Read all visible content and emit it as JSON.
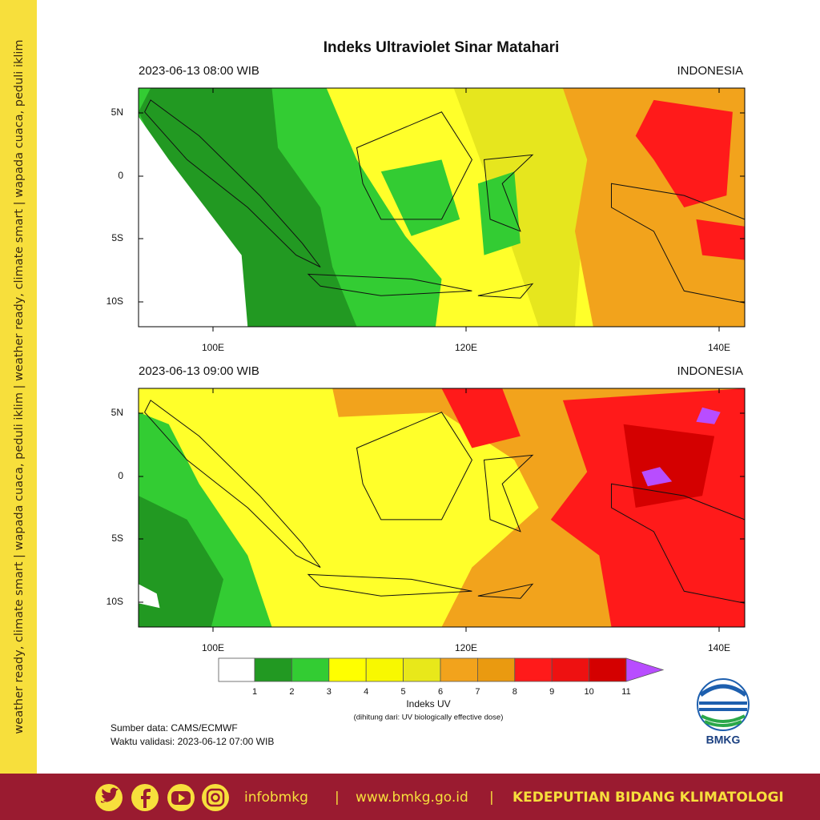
{
  "title": "Indeks Ultraviolet Sinar Matahari",
  "panels": [
    {
      "time": "2023-06-13  08:00 WIB",
      "region": "INDONESIA",
      "y_labels": [
        "5N",
        "0",
        "5S",
        "10S"
      ],
      "x_labels": [
        "100E",
        "120E",
        "140E"
      ]
    },
    {
      "time": "2023-06-13  09:00 WIB",
      "region": "INDONESIA",
      "y_labels": [
        "5N",
        "0",
        "5S",
        "10S"
      ],
      "x_labels": [
        "100E",
        "120E",
        "140E"
      ]
    }
  ],
  "colorbar": {
    "labels": [
      "1",
      "2",
      "3",
      "4",
      "5",
      "6",
      "7",
      "8",
      "9",
      "10",
      "11"
    ],
    "title": "Indeks UV",
    "subtitle": "(dihitung dari: UV biologically effective dose)"
  },
  "source": "Sumber data: CAMS/ECMWF",
  "validity": "Waktu validasi: 2023-06-12 07:00 WIB",
  "logo": "BMKG",
  "side_text": "weather ready, climate smart  |  wapada cuaca, peduli iklim  |  weather ready, climate smart  |  wapada cuaca, peduli iklim",
  "footer": {
    "handle": "infobmkg",
    "separator": "|",
    "website": "www.bmkg.go.id",
    "department": "KEDEPUTIAN BIDANG KLIMATOLOGI"
  }
}
